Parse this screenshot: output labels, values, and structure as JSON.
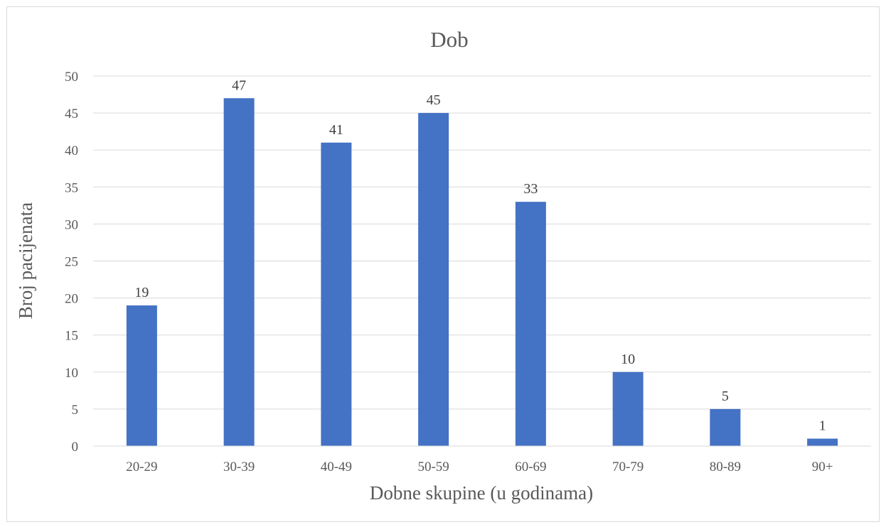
{
  "chart_data": {
    "type": "bar",
    "title": "Dob",
    "xlabel": "Dobne skupine (u godinama)",
    "ylabel": "Broj pacijenata",
    "categories": [
      "20-29",
      "30-39",
      "40-49",
      "50-59",
      "60-69",
      "70-79",
      "80-89",
      "90+"
    ],
    "values": [
      19,
      47,
      41,
      45,
      33,
      10,
      5,
      1
    ],
    "data_labels": [
      "19",
      "47",
      "41",
      "45",
      "33",
      "10",
      "5",
      "1"
    ],
    "ylim": [
      0,
      50
    ],
    "yticks": [
      "0",
      "5",
      "10",
      "15",
      "20",
      "25",
      "30",
      "35",
      "40",
      "45",
      "50"
    ],
    "grid": true,
    "legend": "none",
    "bar_color": "#4472c4"
  }
}
